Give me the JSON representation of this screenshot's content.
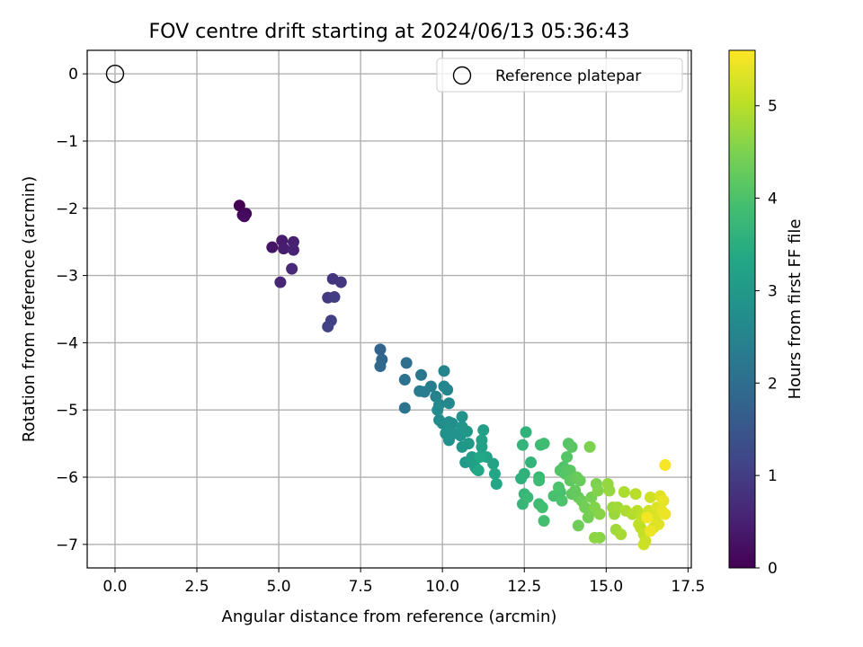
{
  "chart_data": {
    "type": "scatter",
    "title": "FOV centre drift starting at 2024/06/13 05:36:43",
    "xlabel": "Angular distance from reference (arcmin)",
    "ylabel": "Rotation from reference (arcmin)",
    "xlim": [
      -0.85,
      17.6
    ],
    "ylim": [
      -7.35,
      0.35
    ],
    "xticks": [
      0.0,
      2.5,
      5.0,
      7.5,
      10.0,
      12.5,
      15.0,
      17.5
    ],
    "xtick_labels": [
      "0.0",
      "2.5",
      "5.0",
      "7.5",
      "10.0",
      "12.5",
      "15.0",
      "17.5"
    ],
    "yticks": [
      0,
      -1,
      -2,
      -3,
      -4,
      -5,
      -6,
      -7
    ],
    "ytick_labels": [
      "0",
      "−1",
      "−2",
      "−3",
      "−4",
      "−5",
      "−6",
      "−7"
    ],
    "grid": true,
    "colormap": "viridis",
    "colorbar": {
      "label": "Hours from first FF file",
      "range": [
        0,
        5.6
      ],
      "ticks": [
        0,
        1,
        2,
        3,
        4,
        5
      ],
      "tick_labels": [
        "0",
        "1",
        "2",
        "3",
        "4",
        "5"
      ]
    },
    "legend": {
      "position": "upper-right",
      "entries": [
        "Reference platepar"
      ]
    },
    "reference_point": {
      "x": 0,
      "y": 0,
      "marker": "open-circle"
    },
    "series": [
      {
        "points": [
          [
            3.8,
            -1.96,
            0.0
          ],
          [
            3.9,
            -2.1,
            0.05
          ],
          [
            4.0,
            -2.08,
            0.1
          ],
          [
            3.95,
            -2.12,
            0.15
          ],
          [
            4.8,
            -2.58,
            0.3
          ],
          [
            5.1,
            -2.48,
            0.4
          ],
          [
            5.15,
            -2.6,
            0.45
          ],
          [
            5.45,
            -2.5,
            0.5
          ],
          [
            5.45,
            -2.62,
            0.55
          ],
          [
            5.05,
            -3.1,
            0.6
          ],
          [
            5.4,
            -2.9,
            0.65
          ],
          [
            6.65,
            -3.05,
            0.85
          ],
          [
            6.9,
            -3.1,
            0.9
          ],
          [
            6.5,
            -3.33,
            0.95
          ],
          [
            6.7,
            -3.32,
            1.0
          ],
          [
            6.6,
            -3.67,
            1.05
          ],
          [
            6.5,
            -3.76,
            1.1
          ],
          [
            8.1,
            -4.1,
            1.8
          ],
          [
            8.15,
            -4.25,
            1.85
          ],
          [
            8.1,
            -4.35,
            1.9
          ],
          [
            8.9,
            -4.3,
            2.05
          ],
          [
            8.85,
            -4.55,
            2.1
          ],
          [
            8.85,
            -4.97,
            2.15
          ],
          [
            9.35,
            -4.48,
            2.25
          ],
          [
            9.3,
            -4.72,
            2.3
          ],
          [
            9.45,
            -4.73,
            2.35
          ],
          [
            9.65,
            -4.65,
            2.4
          ],
          [
            9.8,
            -4.8,
            2.45
          ],
          [
            10.05,
            -4.42,
            2.5
          ],
          [
            10.05,
            -4.65,
            2.55
          ],
          [
            10.15,
            -4.7,
            2.55
          ],
          [
            10.2,
            -4.9,
            2.6
          ],
          [
            9.9,
            -4.92,
            2.6
          ],
          [
            9.85,
            -5.0,
            2.65
          ],
          [
            9.9,
            -5.15,
            2.65
          ],
          [
            10.0,
            -5.2,
            2.7
          ],
          [
            10.2,
            -5.18,
            2.7
          ],
          [
            10.3,
            -5.2,
            2.75
          ],
          [
            10.1,
            -5.35,
            2.75
          ],
          [
            10.2,
            -5.45,
            2.8
          ],
          [
            10.15,
            -5.3,
            2.8
          ],
          [
            10.35,
            -5.35,
            2.85
          ],
          [
            10.6,
            -5.1,
            2.85
          ],
          [
            10.6,
            -5.25,
            2.9
          ],
          [
            10.55,
            -5.38,
            2.9
          ],
          [
            10.6,
            -5.55,
            2.95
          ],
          [
            10.75,
            -5.32,
            2.95
          ],
          [
            10.8,
            -5.5,
            3.0
          ],
          [
            10.7,
            -5.78,
            3.0
          ],
          [
            10.85,
            -5.75,
            3.05
          ],
          [
            10.95,
            -5.8,
            3.05
          ],
          [
            11.05,
            -5.88,
            3.1
          ],
          [
            10.9,
            -5.7,
            3.1
          ],
          [
            11.0,
            -5.85,
            3.15
          ],
          [
            11.25,
            -5.3,
            3.15
          ],
          [
            11.2,
            -5.45,
            3.2
          ],
          [
            11.2,
            -5.55,
            3.2
          ],
          [
            11.35,
            -5.7,
            3.25
          ],
          [
            11.55,
            -5.8,
            3.25
          ],
          [
            11.6,
            -5.95,
            3.3
          ],
          [
            11.65,
            -6.1,
            3.3
          ],
          [
            11.15,
            -5.7,
            3.35
          ],
          [
            11.1,
            -5.9,
            3.35
          ],
          [
            12.4,
            -6.02,
            3.55
          ],
          [
            12.5,
            -5.95,
            3.6
          ],
          [
            12.55,
            -5.33,
            3.6
          ],
          [
            12.45,
            -5.52,
            3.65
          ],
          [
            12.7,
            -5.78,
            3.65
          ],
          [
            12.5,
            -6.25,
            3.7
          ],
          [
            12.45,
            -6.4,
            3.7
          ],
          [
            12.6,
            -6.3,
            3.75
          ],
          [
            12.95,
            -6.0,
            3.75
          ],
          [
            12.95,
            -6.05,
            3.8
          ],
          [
            13.0,
            -5.52,
            3.8
          ],
          [
            13.1,
            -5.5,
            3.85
          ],
          [
            12.95,
            -6.4,
            3.85
          ],
          [
            13.05,
            -6.45,
            3.9
          ],
          [
            13.1,
            -6.65,
            3.9
          ],
          [
            13.4,
            -6.28,
            3.95
          ],
          [
            13.6,
            -6.22,
            3.95
          ],
          [
            13.55,
            -6.15,
            4.0
          ],
          [
            13.65,
            -6.35,
            4.0
          ],
          [
            13.7,
            -5.85,
            4.05
          ],
          [
            13.6,
            -5.9,
            4.05
          ],
          [
            13.75,
            -5.95,
            4.1
          ],
          [
            13.8,
            -5.7,
            4.1
          ],
          [
            13.85,
            -5.5,
            4.1
          ],
          [
            13.95,
            -5.55,
            4.15
          ],
          [
            13.9,
            -5.9,
            4.15
          ],
          [
            13.9,
            -6.05,
            4.2
          ],
          [
            13.95,
            -6.25,
            4.2
          ],
          [
            14.05,
            -6.2,
            4.25
          ],
          [
            14.15,
            -6.3,
            4.25
          ],
          [
            14.1,
            -6.0,
            4.3
          ],
          [
            14.2,
            -6.05,
            4.3
          ],
          [
            14.25,
            -6.35,
            4.35
          ],
          [
            14.15,
            -6.72,
            4.35
          ],
          [
            14.35,
            -6.45,
            4.4
          ],
          [
            14.45,
            -6.6,
            4.4
          ],
          [
            14.55,
            -6.3,
            4.45
          ],
          [
            14.6,
            -6.5,
            4.45
          ],
          [
            14.5,
            -5.55,
            4.5
          ],
          [
            14.7,
            -6.1,
            4.5
          ],
          [
            14.75,
            -6.2,
            4.55
          ],
          [
            14.65,
            -6.45,
            4.55
          ],
          [
            14.8,
            -6.55,
            4.6
          ],
          [
            14.8,
            -6.9,
            4.6
          ],
          [
            14.65,
            -6.9,
            4.65
          ],
          [
            15.05,
            -6.1,
            4.7
          ],
          [
            15.1,
            -6.2,
            4.7
          ],
          [
            15.2,
            -6.45,
            4.75
          ],
          [
            15.25,
            -6.55,
            4.75
          ],
          [
            15.35,
            -6.45,
            4.8
          ],
          [
            15.3,
            -6.78,
            4.8
          ],
          [
            15.45,
            -6.85,
            4.85
          ],
          [
            15.55,
            -6.22,
            4.9
          ],
          [
            15.6,
            -6.5,
            4.9
          ],
          [
            15.8,
            -6.55,
            4.95
          ],
          [
            15.9,
            -6.25,
            5.0
          ],
          [
            15.95,
            -6.5,
            5.0
          ],
          [
            16.0,
            -6.7,
            5.05
          ],
          [
            16.05,
            -6.75,
            5.05
          ],
          [
            16.1,
            -6.6,
            5.1
          ],
          [
            16.15,
            -6.85,
            5.1
          ],
          [
            16.2,
            -6.95,
            5.15
          ],
          [
            16.15,
            -7.0,
            5.15
          ],
          [
            16.3,
            -6.5,
            5.2
          ],
          [
            16.35,
            -6.3,
            5.2
          ],
          [
            16.4,
            -6.55,
            5.25
          ],
          [
            16.45,
            -6.75,
            5.25
          ],
          [
            16.5,
            -6.6,
            5.3
          ],
          [
            16.55,
            -6.45,
            5.3
          ],
          [
            16.6,
            -6.7,
            5.35
          ],
          [
            16.65,
            -6.28,
            5.35
          ],
          [
            16.7,
            -6.5,
            5.4
          ],
          [
            16.75,
            -6.35,
            5.4
          ],
          [
            16.8,
            -6.55,
            5.45
          ],
          [
            16.35,
            -6.8,
            5.45
          ],
          [
            16.25,
            -6.6,
            5.5
          ],
          [
            16.8,
            -5.82,
            5.55
          ]
        ]
      }
    ]
  }
}
